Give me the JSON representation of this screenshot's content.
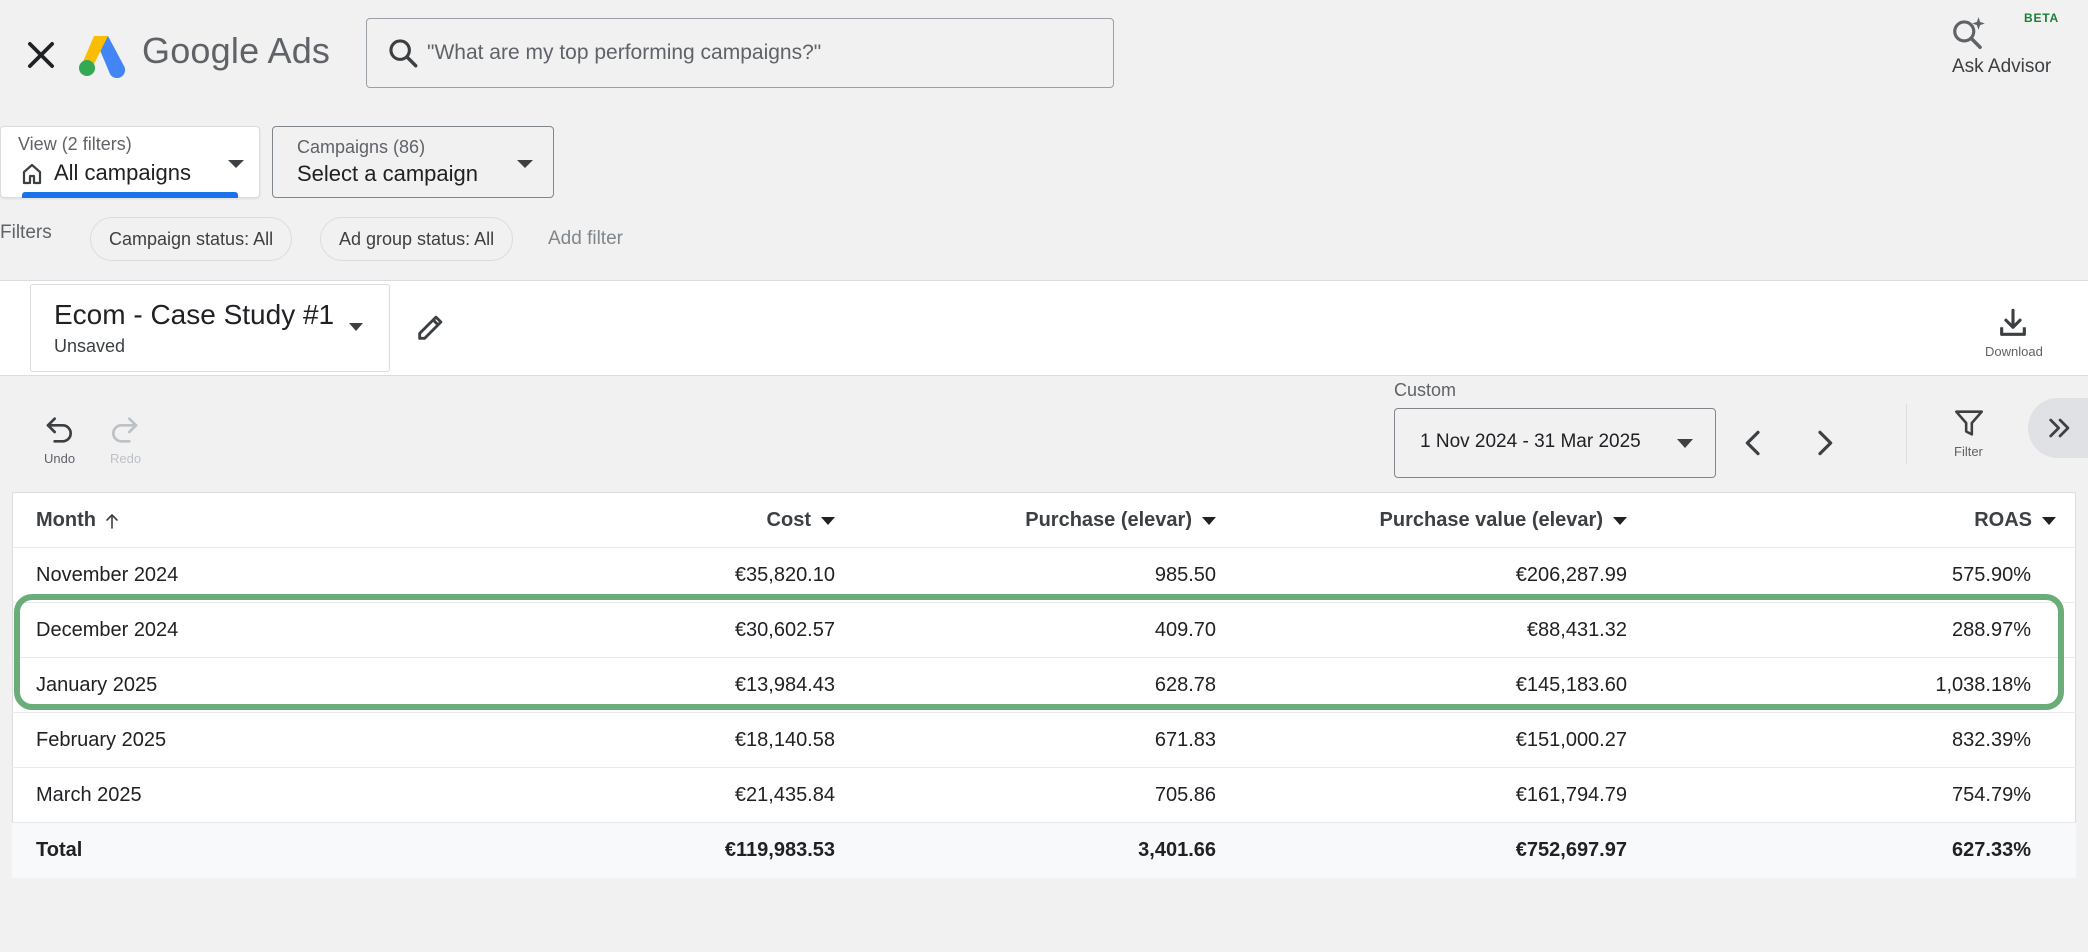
{
  "header": {
    "brand": "Google Ads",
    "search_placeholder": "\"What are my top performing campaigns?\"",
    "advisor_badge": "BETA",
    "advisor_label": "Ask Advisor"
  },
  "view_selector": {
    "label": "View (2 filters)",
    "value": "All campaigns"
  },
  "campaign_selector": {
    "label": "Campaigns (86)",
    "value": "Select a campaign"
  },
  "filters": {
    "label": "Filters",
    "chips": [
      "Campaign status: All",
      "Ad group status: All"
    ],
    "add_label": "Add filter"
  },
  "report": {
    "title": "Ecom - Case Study #1",
    "status": "Unsaved",
    "download_label": "Download"
  },
  "toolbar": {
    "undo_label": "Undo",
    "redo_label": "Redo",
    "date_caption": "Custom",
    "date_range": "1 Nov 2024 - 31 Mar 2025",
    "filter_label": "Filter"
  },
  "table": {
    "columns": [
      "Month",
      "Cost",
      "Purchase (elevar)",
      "Purchase value (elevar)",
      "ROAS"
    ],
    "rows": [
      [
        "November 2024",
        "€35,820.10",
        "985.50",
        "€206,287.99",
        "575.90%"
      ],
      [
        "December 2024",
        "€30,602.57",
        "409.70",
        "€88,431.32",
        "288.97%"
      ],
      [
        "January 2025",
        "€13,984.43",
        "628.78",
        "€145,183.60",
        "1,038.18%"
      ],
      [
        "February 2025",
        "€18,140.58",
        "671.83",
        "€151,000.27",
        "832.39%"
      ],
      [
        "March 2025",
        "€21,435.84",
        "705.86",
        "€161,794.79",
        "754.79%"
      ]
    ],
    "total": [
      "Total",
      "€119,983.53",
      "3,401.66",
      "€752,697.97",
      "627.33%"
    ]
  },
  "colors": {
    "accent_blue": "#1a73e8",
    "highlight_green": "#5aa469",
    "beta_green": "#188038"
  }
}
